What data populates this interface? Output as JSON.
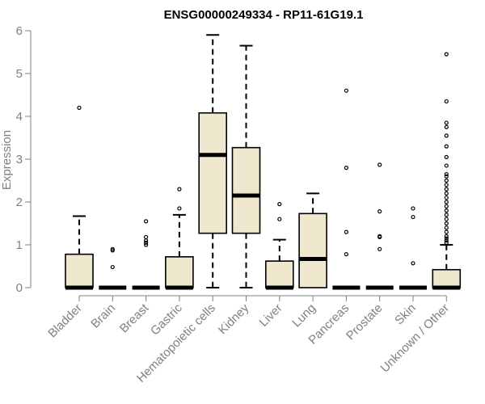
{
  "chart_data": {
    "type": "boxplot",
    "title": "ENSG00000249334 - RP11-61G19.1",
    "ylabel": "Expression",
    "xlabel": "",
    "ylim": [
      0,
      6
    ],
    "yticks": [
      0,
      1,
      2,
      3,
      4,
      5,
      6
    ],
    "grid": false,
    "box_fill": "#efe8cf",
    "box_stroke": "#000000",
    "axis_color": "#808080",
    "categories": [
      "Bladder",
      "Brain",
      "Breast",
      "Gastric",
      "Hematopoietic cells",
      "Kidney",
      "Liver",
      "Lung",
      "Pancreas",
      "Prostate",
      "Skin",
      "Unknown / Other"
    ],
    "boxes": [
      {
        "q1": 0,
        "median": 0,
        "q3": 0.78,
        "whisker_low": 0,
        "whisker_high": 1.67,
        "outliers": [
          4.2
        ]
      },
      {
        "q1": 0,
        "median": 0,
        "q3": 0,
        "whisker_low": 0,
        "whisker_high": 0,
        "outliers": [
          0.48,
          0.87,
          0.9
        ]
      },
      {
        "q1": 0,
        "median": 0,
        "q3": 0,
        "whisker_low": 0,
        "whisker_high": 0,
        "outliers": [
          1.0,
          1.05,
          1.1,
          1.18,
          1.55
        ]
      },
      {
        "q1": 0,
        "median": 0,
        "q3": 0.72,
        "whisker_low": 0,
        "whisker_high": 1.7,
        "outliers": [
          1.85,
          2.3
        ]
      },
      {
        "q1": 1.27,
        "median": 3.1,
        "q3": 4.08,
        "whisker_low": 0,
        "whisker_high": 5.9,
        "outliers": []
      },
      {
        "q1": 1.27,
        "median": 2.15,
        "q3": 3.27,
        "whisker_low": 0,
        "whisker_high": 5.65,
        "outliers": []
      },
      {
        "q1": 0,
        "median": 0,
        "q3": 0.62,
        "whisker_low": 0,
        "whisker_high": 1.12,
        "outliers": [
          1.6,
          1.95
        ]
      },
      {
        "q1": 0,
        "median": 0.67,
        "q3": 1.73,
        "whisker_low": 0,
        "whisker_high": 2.2,
        "outliers": []
      },
      {
        "q1": 0,
        "median": 0,
        "q3": 0,
        "whisker_low": 0,
        "whisker_high": 0,
        "outliers": [
          0.78,
          1.3,
          2.8,
          4.6
        ]
      },
      {
        "q1": 0,
        "median": 0,
        "q3": 0,
        "whisker_low": 0,
        "whisker_high": 0,
        "outliers": [
          0.9,
          1.18,
          1.2,
          1.78,
          2.87
        ]
      },
      {
        "q1": 0,
        "median": 0,
        "q3": 0,
        "whisker_low": 0,
        "whisker_high": 0,
        "outliers": [
          0.57,
          1.65,
          1.85
        ]
      },
      {
        "q1": 0,
        "median": 0,
        "q3": 0.42,
        "whisker_low": 0,
        "whisker_high": 1.0,
        "outliers": [
          1.05,
          1.1,
          1.15,
          1.2,
          1.3,
          1.4,
          1.5,
          1.6,
          1.7,
          1.8,
          1.9,
          2.0,
          2.1,
          2.2,
          2.3,
          2.4,
          2.5,
          2.6,
          2.65,
          2.85,
          3.05,
          3.3,
          3.55,
          3.75,
          3.85,
          4.35,
          5.45
        ]
      }
    ]
  }
}
